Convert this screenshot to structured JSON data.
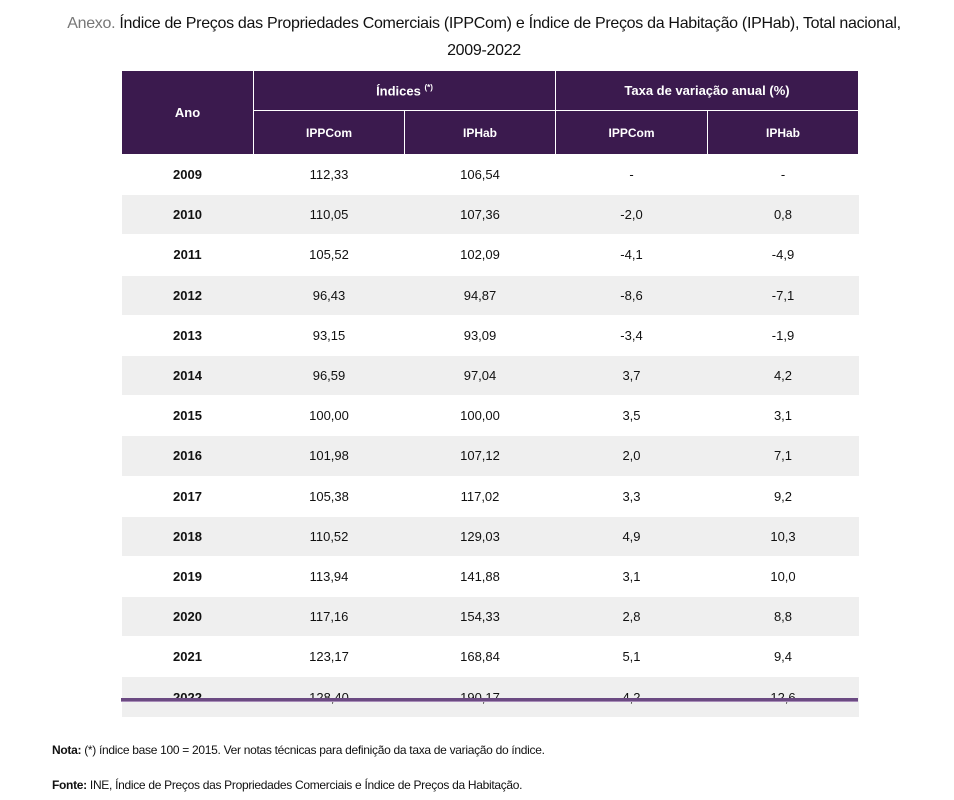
{
  "title": {
    "prefix": "Anexo.",
    "line1": "Índice de Preços das Propriedades Comerciais (IPPCom) e Índice de Preços da Habitação (IPHab), Total nacional,",
    "line2": "2009-2022"
  },
  "table": {
    "header": {
      "year": "Ano",
      "indices": "Índices",
      "indices_sup": "(*)",
      "rate": "Taxa de variação anual (%)",
      "sub": [
        "IPPCom",
        "IPHab",
        "IPPCom",
        "IPHab"
      ]
    },
    "rows": [
      [
        "2009",
        "112,33",
        "106,54",
        "-",
        "-"
      ],
      [
        "2010",
        "110,05",
        "107,36",
        "-2,0",
        "0,8"
      ],
      [
        "2011",
        "105,52",
        "102,09",
        "-4,1",
        "-4,9"
      ],
      [
        "2012",
        "96,43",
        "94,87",
        "-8,6",
        "-7,1"
      ],
      [
        "2013",
        "93,15",
        "93,09",
        "-3,4",
        "-1,9"
      ],
      [
        "2014",
        "96,59",
        "97,04",
        "3,7",
        "4,2"
      ],
      [
        "2015",
        "100,00",
        "100,00",
        "3,5",
        "3,1"
      ],
      [
        "2016",
        "101,98",
        "107,12",
        "2,0",
        "7,1"
      ],
      [
        "2017",
        "105,38",
        "117,02",
        "3,3",
        "9,2"
      ],
      [
        "2018",
        "110,52",
        "129,03",
        "4,9",
        "10,3"
      ],
      [
        "2019",
        "113,94",
        "141,88",
        "3,1",
        "10,0"
      ],
      [
        "2020",
        "117,16",
        "154,33",
        "2,8",
        "8,8"
      ],
      [
        "2021",
        "123,17",
        "168,84",
        "5,1",
        "9,4"
      ],
      [
        "2022",
        "128,40",
        "190,17",
        "4,2",
        "12,6"
      ]
    ]
  },
  "note": {
    "label": "Nota:",
    "text": "(*) índice base 100 = 2015. Ver notas técnicas para definição da taxa de variação do índice."
  },
  "source": {
    "label": "Fonte:",
    "text": "INE, Índice de Preços das Propriedades Comerciais e Índice de Preços da Habitação."
  }
}
